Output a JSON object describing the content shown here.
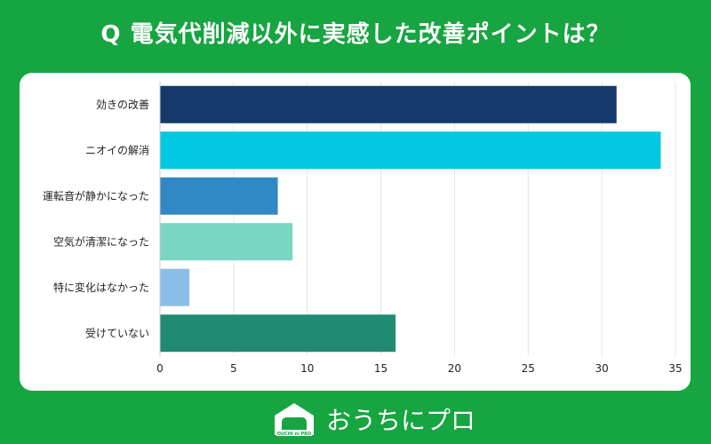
{
  "title": "Q 電気代削減以外に実感した改善ポイントは？",
  "brand": {
    "logo_text": "おうちにプロ",
    "badge_text": "OUCHI ni PRO"
  },
  "colors": {
    "background": "#16a540",
    "panel": "#ffffff"
  },
  "chart_data": {
    "type": "bar",
    "orientation": "horizontal",
    "categories": [
      "効きの改善",
      "ニオイの解消",
      "運転音が静かになった",
      "空気が清潔になった",
      "特に変化はなかった",
      "受けていない"
    ],
    "values": [
      31,
      34,
      8,
      9,
      2,
      16
    ],
    "colors": [
      "#14396a",
      "#00c8e0",
      "#3089c4",
      "#79d6c1",
      "#8bbde9",
      "#218b72"
    ],
    "xlim": [
      0,
      35
    ],
    "xticks": [
      0,
      5,
      10,
      15,
      20,
      25,
      30,
      35
    ],
    "grid": true
  }
}
